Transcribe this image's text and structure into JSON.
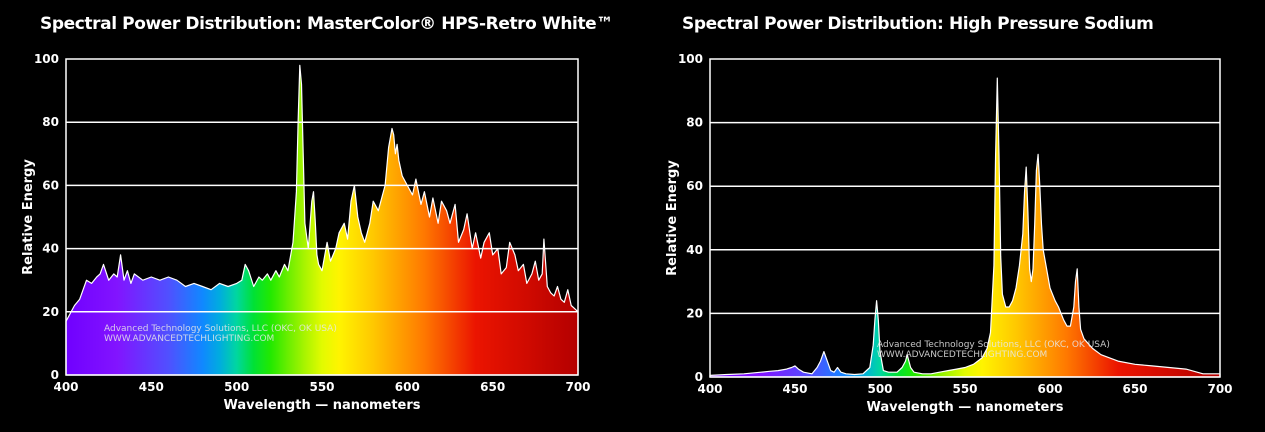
{
  "chart_data": [
    {
      "type": "area",
      "title": "Spectral Power Distribution: MasterColor® HPS-Retro White™",
      "xlabel": "Wavelength — nanometers",
      "ylabel": "Relative Energy",
      "xlim": [
        400,
        700
      ],
      "ylim": [
        0,
        100
      ],
      "xticks": [
        "400",
        "450",
        "500",
        "550",
        "600",
        "650",
        "700"
      ],
      "yticks": [
        "0",
        "20",
        "40",
        "60",
        "80",
        "100"
      ],
      "grid": true,
      "watermark": [
        "Advanced Technology Solutions, LLC (OKC, OK USA)",
        "WWW.ADVANCEDTECHLIGHTING.COM"
      ],
      "series": [
        {
          "x": [
            400,
            402,
            405,
            408,
            410,
            412,
            415,
            418,
            420,
            422,
            425,
            428,
            430,
            432,
            434,
            436,
            438,
            440,
            445,
            450,
            455,
            460,
            465,
            470,
            475,
            480,
            485,
            490,
            495,
            500,
            503,
            505,
            507,
            510,
            513,
            515,
            518,
            520,
            523,
            525,
            528,
            530,
            533,
            535,
            536,
            537,
            538,
            539,
            540,
            542,
            544,
            545,
            546,
            547,
            548,
            550,
            553,
            555,
            558,
            560,
            563,
            565,
            567,
            569,
            571,
            573,
            575,
            578,
            580,
            583,
            585,
            587,
            589,
            591,
            592,
            593,
            594,
            595,
            597,
            600,
            603,
            605,
            608,
            610,
            613,
            615,
            618,
            620,
            623,
            625,
            628,
            630,
            633,
            635,
            638,
            640,
            643,
            645,
            648,
            650,
            653,
            655,
            658,
            660,
            663,
            665,
            668,
            670,
            673,
            675,
            677,
            679,
            680,
            682,
            684,
            686,
            688,
            690,
            692,
            694,
            696,
            698,
            700
          ],
          "y": [
            17,
            19,
            22,
            24,
            27,
            30,
            29,
            31,
            32,
            35,
            30,
            32,
            31,
            38,
            30,
            33,
            29,
            32,
            30,
            31,
            30,
            31,
            30,
            28,
            29,
            28,
            27,
            29,
            28,
            29,
            30,
            35,
            33,
            28,
            31,
            30,
            32,
            30,
            33,
            31,
            35,
            33,
            42,
            58,
            80,
            98,
            92,
            70,
            48,
            40,
            55,
            58,
            49,
            38,
            35,
            33,
            42,
            36,
            40,
            45,
            48,
            43,
            55,
            60,
            50,
            45,
            42,
            48,
            55,
            52,
            56,
            60,
            72,
            78,
            76,
            70,
            73,
            68,
            63,
            60,
            57,
            62,
            54,
            58,
            50,
            56,
            48,
            55,
            52,
            48,
            54,
            42,
            46,
            51,
            40,
            45,
            37,
            42,
            45,
            38,
            40,
            32,
            34,
            42,
            38,
            33,
            35,
            29,
            32,
            36,
            30,
            32,
            43,
            28,
            26,
            25,
            28,
            24,
            23,
            27,
            22,
            21,
            20
          ]
        }
      ]
    },
    {
      "type": "area",
      "title": "Spectral Power Distribution: High Pressure Sodium",
      "xlabel": "Wavelength — nanometers",
      "ylabel": "Relative Energy",
      "xlim": [
        400,
        700
      ],
      "ylim": [
        0,
        100
      ],
      "xticks": [
        "400",
        "450",
        "500",
        "550",
        "600",
        "650",
        "700"
      ],
      "yticks": [
        "0",
        "20",
        "40",
        "60",
        "80",
        "100"
      ],
      "grid": true,
      "watermark": [
        "Advanced Technology Solutions, LLC (OKC, OK USA)",
        "WWW.ADVANCEDTECHLIGHTING.COM"
      ],
      "series": [
        {
          "x": [
            400,
            410,
            420,
            430,
            435,
            440,
            445,
            448,
            450,
            452,
            455,
            460,
            463,
            465,
            467,
            469,
            471,
            473,
            475,
            477,
            480,
            485,
            490,
            494,
            496,
            497,
            498,
            499,
            500,
            502,
            505,
            510,
            513,
            515,
            516,
            517,
            518,
            520,
            525,
            530,
            535,
            540,
            545,
            550,
            555,
            560,
            563,
            565,
            567,
            568,
            569,
            570,
            571,
            572,
            574,
            576,
            578,
            580,
            582,
            584,
            585,
            586,
            587,
            588,
            589,
            590,
            591,
            592,
            593,
            594,
            595,
            596,
            598,
            600,
            603,
            605,
            608,
            610,
            612,
            614,
            615,
            616,
            617,
            618,
            620,
            625,
            630,
            640,
            650,
            660,
            670,
            680,
            690,
            700
          ],
          "y": [
            0.5,
            0.8,
            1,
            1.5,
            1.8,
            2,
            2.5,
            3,
            3.5,
            2.5,
            1.5,
            1,
            3,
            5,
            8,
            5,
            2,
            1.5,
            3,
            1.5,
            1,
            0.8,
            1,
            3,
            10,
            18,
            24,
            18,
            8,
            2,
            1.5,
            1.5,
            3,
            5,
            7,
            5,
            3,
            1.5,
            1,
            1,
            1.5,
            2,
            2.5,
            3,
            4,
            6,
            9,
            14,
            35,
            70,
            94,
            70,
            38,
            26,
            22,
            22,
            24,
            28,
            35,
            45,
            58,
            66,
            52,
            34,
            30,
            34,
            48,
            65,
            70,
            60,
            48,
            40,
            34,
            28,
            24,
            22,
            18,
            16,
            16,
            22,
            30,
            34,
            22,
            15,
            12,
            9,
            7,
            5,
            4,
            3.5,
            3,
            2.5,
            1,
            1
          ]
        }
      ]
    }
  ]
}
